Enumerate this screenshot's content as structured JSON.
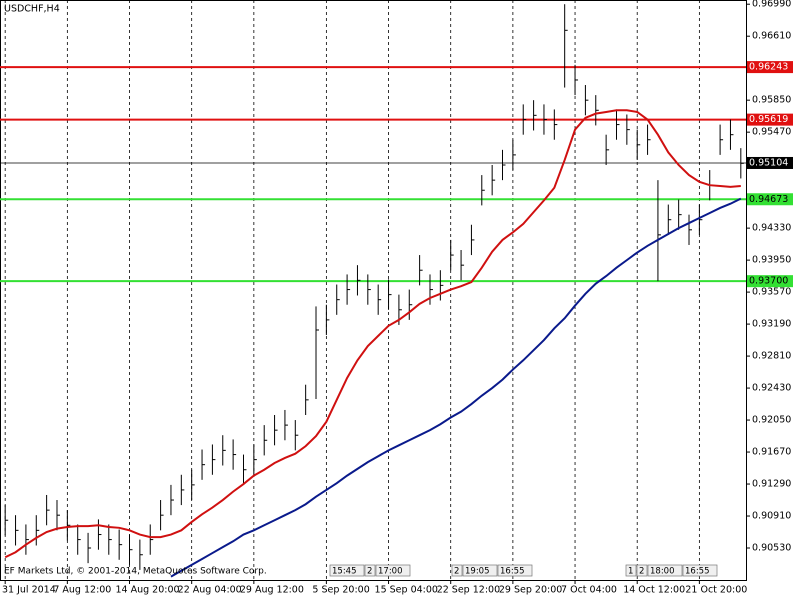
{
  "chart_data": {
    "type": "ohlc",
    "title": "USDCHF,H4",
    "copyright": "EF Markets Ltd, © 2001-2014, MetaQuotes Software Corp.",
    "categories": [
      "31 Jul 2014",
      null,
      null,
      null,
      null,
      null,
      "7 Aug 12:00",
      null,
      null,
      null,
      null,
      null,
      "14 Aug 20:00",
      null,
      null,
      null,
      null,
      null,
      "22 Aug 04:00",
      null,
      null,
      null,
      null,
      null,
      "29 Aug 12:00",
      null,
      null,
      null,
      null,
      null,
      null,
      "5 Sep 20:00",
      null,
      null,
      null,
      null,
      null,
      "15 Sep 04:00",
      null,
      null,
      null,
      null,
      null,
      "22 Sep 12:00",
      null,
      null,
      null,
      null,
      null,
      "29 Sep 20:00",
      null,
      null,
      null,
      null,
      null,
      "7 Oct 04:00",
      null,
      null,
      null,
      null,
      null,
      "14 Oct 12:00",
      null,
      null,
      null,
      null,
      null,
      "21 Oct 20:00",
      null,
      null,
      null,
      null
    ],
    "bars": {
      "color": "#000000",
      "high": [
        0.9104,
        0.9092,
        0.9081,
        0.9092,
        0.9116,
        0.911,
        0.9098,
        0.9081,
        0.9071,
        0.9087,
        0.9081,
        0.9075,
        0.9069,
        0.9063,
        0.9081,
        0.911,
        0.9128,
        0.914,
        0.9146,
        0.917,
        0.9176,
        0.9187,
        0.9182,
        0.9164,
        0.9176,
        0.9199,
        0.9211,
        0.9217,
        0.9205,
        0.9247,
        0.934,
        0.9342,
        0.9366,
        0.9378,
        0.9389,
        0.9378,
        0.9366,
        0.9372,
        0.9354,
        0.936,
        0.9401,
        0.9378,
        0.9383,
        0.9419,
        0.9407,
        0.9437,
        0.9496,
        0.9508,
        0.9526,
        0.9538,
        0.958,
        0.9585,
        0.958,
        0.9574,
        0.9699,
        0.9627,
        0.9603,
        0.9591,
        0.9544,
        0.9574,
        0.9568,
        0.955,
        0.9556,
        0.949,
        0.9461,
        0.9467,
        0.9449,
        0.9461,
        0.9502,
        0.9556,
        0.9562,
        0.9528
      ],
      "low": [
        0.9068,
        0.9056,
        0.9045,
        0.9056,
        0.908,
        0.9074,
        0.9062,
        0.9045,
        0.9035,
        0.9051,
        0.9045,
        0.9039,
        0.9033,
        0.9027,
        0.9045,
        0.9074,
        0.9092,
        0.9104,
        0.911,
        0.9134,
        0.914,
        0.9151,
        0.9146,
        0.9128,
        0.914,
        0.9163,
        0.9175,
        0.9181,
        0.9169,
        0.9211,
        0.923,
        0.9306,
        0.933,
        0.9342,
        0.9353,
        0.9342,
        0.933,
        0.9336,
        0.9318,
        0.9324,
        0.9365,
        0.9342,
        0.9347,
        0.9383,
        0.9371,
        0.9401,
        0.946,
        0.9472,
        0.949,
        0.9502,
        0.9544,
        0.9549,
        0.9544,
        0.9538,
        0.96,
        0.9591,
        0.9567,
        0.9555,
        0.9508,
        0.9538,
        0.9532,
        0.9514,
        0.952,
        0.937,
        0.9425,
        0.9431,
        0.9413,
        0.9425,
        0.9466,
        0.952,
        0.9526,
        0.9492
      ],
      "close": [
        0.9086,
        0.9074,
        0.9063,
        0.9074,
        0.9098,
        0.9092,
        0.908,
        0.9063,
        0.9053,
        0.9069,
        0.9063,
        0.9057,
        0.9051,
        0.9045,
        0.9063,
        0.9092,
        0.911,
        0.9122,
        0.9128,
        0.9152,
        0.9158,
        0.9169,
        0.9164,
        0.9146,
        0.9158,
        0.9181,
        0.9193,
        0.9199,
        0.9187,
        0.9229,
        0.9312,
        0.9324,
        0.9348,
        0.936,
        0.9371,
        0.936,
        0.9348,
        0.9354,
        0.9336,
        0.9342,
        0.9383,
        0.936,
        0.9365,
        0.9401,
        0.9389,
        0.9419,
        0.9478,
        0.949,
        0.9508,
        0.952,
        0.9562,
        0.9567,
        0.9562,
        0.9556,
        0.9668,
        0.9609,
        0.9585,
        0.9573,
        0.9526,
        0.9556,
        0.955,
        0.9532,
        0.9538,
        0.9425,
        0.9443,
        0.9449,
        0.9431,
        0.9443,
        0.9484,
        0.9538,
        0.9544,
        0.951
      ]
    },
    "moving_averages": [
      {
        "color": "#d01010",
        "values": [
          0.9042,
          0.9048,
          0.9057,
          0.9065,
          0.9072,
          0.9076,
          0.9078,
          0.9079,
          0.9079,
          0.908,
          0.9078,
          0.9077,
          0.9074,
          0.9069,
          0.9066,
          0.9066,
          0.9069,
          0.9074,
          0.9084,
          0.9093,
          0.9101,
          0.911,
          0.912,
          0.9129,
          0.9139,
          0.9146,
          0.9154,
          0.916,
          0.9165,
          0.9174,
          0.9186,
          0.9203,
          0.9229,
          0.9255,
          0.9276,
          0.9293,
          0.9305,
          0.9317,
          0.9324,
          0.9333,
          0.9343,
          0.935,
          0.9355,
          0.936,
          0.9364,
          0.9369,
          0.9386,
          0.9405,
          0.9419,
          0.9428,
          0.9438,
          0.9452,
          0.9466,
          0.9481,
          0.9514,
          0.955,
          0.9564,
          0.9569,
          0.9571,
          0.9573,
          0.9573,
          0.9571,
          0.9562,
          0.9544,
          0.9523,
          0.9508,
          0.9496,
          0.9488,
          0.9484,
          0.9483,
          0.9482,
          0.9483
        ]
      },
      {
        "color": "#0a1a8c",
        "values": [
          null,
          null,
          null,
          null,
          null,
          null,
          null,
          null,
          null,
          null,
          null,
          null,
          null,
          null,
          null,
          null,
          0.9019,
          0.9026,
          0.9033,
          0.904,
          0.9047,
          0.9054,
          0.9061,
          0.9069,
          0.9074,
          0.908,
          0.9086,
          0.9092,
          0.9098,
          0.9105,
          0.9114,
          0.9122,
          0.913,
          0.9139,
          0.9147,
          0.9155,
          0.9162,
          0.9169,
          0.9175,
          0.9181,
          0.9187,
          0.9193,
          0.92,
          0.9208,
          0.9215,
          0.9224,
          0.9234,
          0.9243,
          0.9253,
          0.9265,
          0.9276,
          0.9288,
          0.93,
          0.9314,
          0.9326,
          0.9341,
          0.9355,
          0.9367,
          0.9376,
          0.9386,
          0.9395,
          0.9404,
          0.9412,
          0.9419,
          0.9426,
          0.9433,
          0.9439,
          0.9445,
          0.9451,
          0.9457,
          0.9462,
          0.9468
        ]
      }
    ],
    "levels": [
      {
        "value": 0.96243,
        "color": "#e01010",
        "text_color": "#ffffff"
      },
      {
        "value": 0.95619,
        "color": "#e01010",
        "text_color": "#ffffff"
      },
      {
        "value": 0.94673,
        "color": "#33e033",
        "text_color": "#000000"
      },
      {
        "value": 0.937,
        "label": "0.93700",
        "color": "#33e033",
        "text_color": "#000000"
      }
    ],
    "current_price": {
      "value": 0.95104,
      "color": "#000000",
      "text_color": "#ffffff"
    },
    "ylim": [
      0.9015,
      0.9704
    ],
    "yticks": [
      {
        "value": 0.9699,
        "label": "0.96990"
      },
      {
        "value": 0.9661,
        "label": "0.96610"
      },
      {
        "value": 0.9585,
        "label": "0.95850"
      },
      {
        "value": 0.9547,
        "label": "0.95470"
      },
      {
        "value": 0.9433,
        "label": "0.94330"
      },
      {
        "value": 0.9395,
        "label": "0.93950"
      },
      {
        "value": 0.9357,
        "label": "0.93570"
      },
      {
        "value": 0.9319,
        "label": "0.93190"
      },
      {
        "value": 0.9281,
        "label": "0.92810"
      },
      {
        "value": 0.9243,
        "label": "0.92430"
      },
      {
        "value": 0.9205,
        "label": "0.92050"
      },
      {
        "value": 0.9167,
        "label": "0.91670"
      },
      {
        "value": 0.9129,
        "label": "0.91290"
      },
      {
        "value": 0.9091,
        "label": "0.90910"
      },
      {
        "value": 0.9053,
        "label": "0.90530"
      }
    ],
    "grid": true,
    "time_markers": [
      [
        "15:45",
        "2",
        "17:00"
      ],
      [
        "2",
        "19:05",
        "16:55"
      ],
      [
        "1",
        "2",
        "18:00",
        "16:55"
      ]
    ]
  }
}
